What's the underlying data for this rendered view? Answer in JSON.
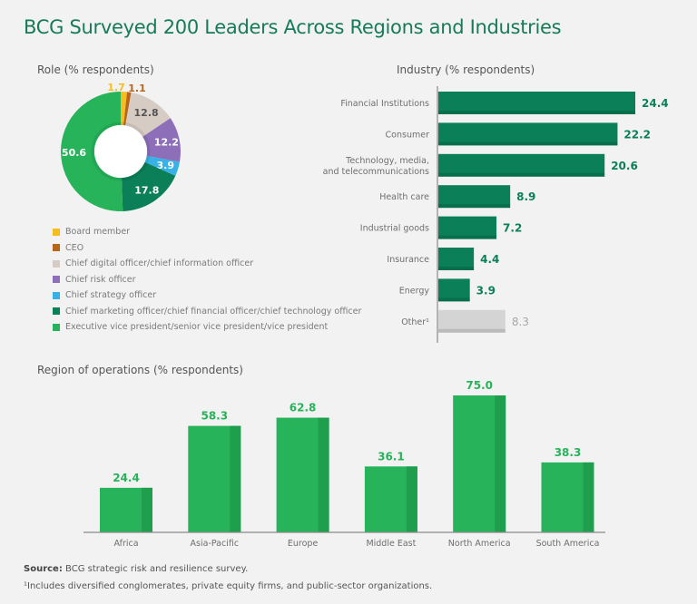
{
  "title": "BCG Surveyed 200 Leaders Across Regions and Industries",
  "footer": {
    "source_label": "Source:",
    "source_text": "BCG strategic risk and resilience survey.",
    "footnote": "¹Includes diversified conglomerates, private equity firms, and public-sector organizations."
  },
  "chart_data": [
    {
      "type": "pie",
      "variant": "donut",
      "title": "Role (% respondents)",
      "legend_position": "bottom",
      "slices": [
        {
          "label": "Board member",
          "value": 1.7,
          "color": "#f5bd1f",
          "label_color": "#f5bd1f"
        },
        {
          "label": "CEO",
          "value": 1.1,
          "color": "#b8651b",
          "label_color": "#b8651b"
        },
        {
          "label": "Chief digital officer/chief information officer",
          "value": 12.8,
          "color": "#d7ccc3",
          "label_color": "#555555"
        },
        {
          "label": "Chief risk officer",
          "value": 12.2,
          "color": "#8c6fb8",
          "label_color": "#ffffff"
        },
        {
          "label": "Chief strategy officer",
          "value": 3.9,
          "color": "#38b2e6",
          "label_color": "#ffffff"
        },
        {
          "label": "Chief marketing officer/chief financial officer/chief technology officer",
          "value": 17.8,
          "color": "#0a7f58",
          "label_color": "#ffffff"
        },
        {
          "label": "Executive vice president/senior vice president/vice president",
          "value": 50.6,
          "color": "#27b35a",
          "label_color": "#ffffff"
        }
      ]
    },
    {
      "type": "bar",
      "orientation": "horizontal",
      "title": "Industry (% respondents)",
      "categories": [
        "Financial Institutions",
        "Consumer",
        "Technology, media,\nand telecommunications",
        "Health care",
        "Industrial goods",
        "Insurance",
        "Energy",
        "Other¹"
      ],
      "values": [
        24.4,
        22.2,
        20.6,
        8.9,
        7.2,
        4.4,
        3.9,
        8.3
      ],
      "value_labels": [
        "24.4",
        "22.2",
        "20.6",
        "8.9",
        "7.2",
        "4.4",
        "3.9",
        "8.3"
      ],
      "colors": [
        "#0a7f58",
        "#0a7f58",
        "#0a7f58",
        "#0a7f58",
        "#0a7f58",
        "#0a7f58",
        "#0a7f58",
        "#d4d4d4"
      ],
      "label_colors": [
        "#0a7f58",
        "#0a7f58",
        "#0a7f58",
        "#0a7f58",
        "#0a7f58",
        "#0a7f58",
        "#0a7f58",
        "#a8a8a8"
      ],
      "xlabel": "",
      "ylabel": "",
      "xlim": [
        0,
        25
      ],
      "grid": false
    },
    {
      "type": "bar",
      "orientation": "vertical",
      "title": "Region of operations (% respondents)",
      "categories": [
        "Africa",
        "Asia-Pacific",
        "Europe",
        "Middle East",
        "North America",
        "South America"
      ],
      "values": [
        24.4,
        58.3,
        62.8,
        36.1,
        75.0,
        38.3
      ],
      "value_labels": [
        "24.4",
        "58.3",
        "62.8",
        "36.1",
        "75.0",
        "38.3"
      ],
      "color": "#27b35a",
      "shade_color": "#1f9e4e",
      "label_color": "#27b35a",
      "xlabel": "",
      "ylabel": "",
      "ylim": [
        0,
        78
      ],
      "grid": false
    }
  ]
}
